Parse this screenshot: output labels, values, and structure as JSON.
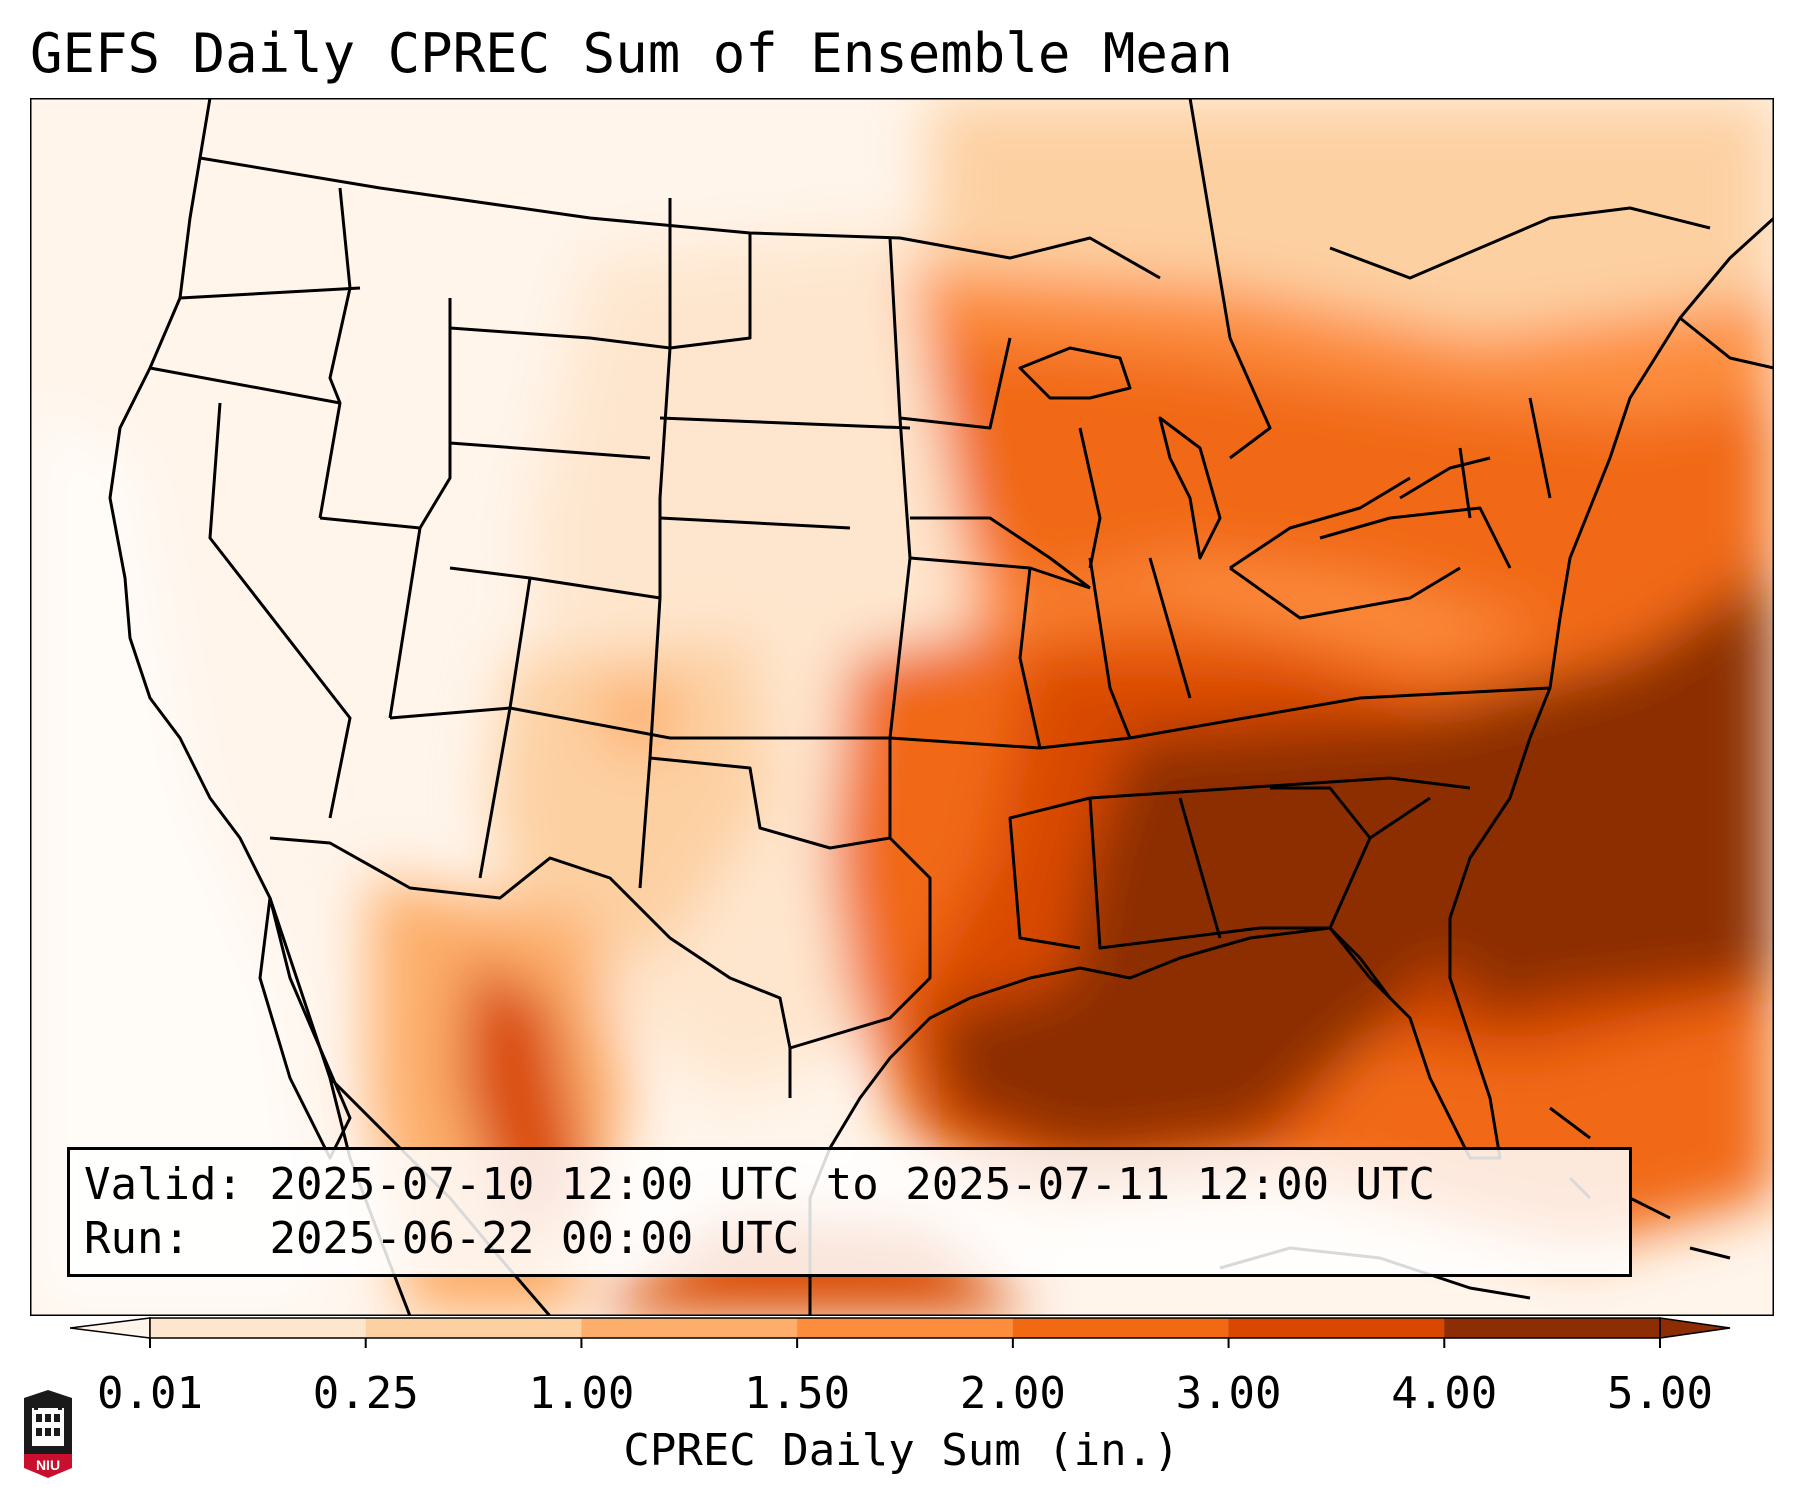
{
  "title": "GEFS Daily CPREC Sum of Ensemble Mean",
  "info": {
    "valid_label": "Valid:",
    "valid_value": "2025-07-10 12:00 UTC to 2025-07-11 12:00 UTC",
    "run_label": "Run:",
    "run_value": "2025-06-22 00:00 UTC"
  },
  "colorbar": {
    "label": "CPREC Daily Sum (in.)",
    "ticks": [
      "0.01",
      "0.25",
      "1.00",
      "1.50",
      "2.00",
      "3.00",
      "4.00",
      "5.00"
    ],
    "colors": [
      "#fff5eb",
      "#fee6ce",
      "#fdd0a2",
      "#fdae6b",
      "#fd8d3c",
      "#f16913",
      "#d94801",
      "#8c2d04"
    ]
  },
  "logo": {
    "text": "NIU",
    "color": "#c8102e"
  }
}
